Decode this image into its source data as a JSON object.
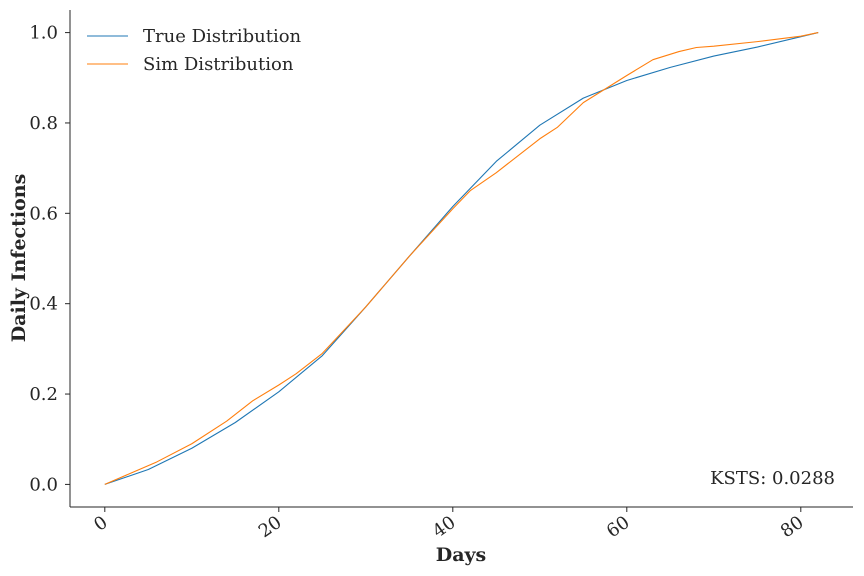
{
  "chart_data": {
    "type": "line",
    "title": "",
    "xlabel": "Days",
    "ylabel": "Daily Infections",
    "xlim": [
      -4,
      86
    ],
    "ylim": [
      -0.05,
      1.05
    ],
    "xticks": [
      0,
      20,
      40,
      60,
      80
    ],
    "xtick_labels": [
      "0",
      "20",
      "40",
      "60",
      "80"
    ],
    "yticks": [
      0.0,
      0.2,
      0.4,
      0.6,
      0.8,
      1.0
    ],
    "ytick_labels": [
      "0.0",
      "0.2",
      "0.4",
      "0.6",
      "0.8",
      "1.0"
    ],
    "grid": false,
    "legend_position": "top-left",
    "annotation": "KSTS: 0.0288",
    "series": [
      {
        "name": "True Distribution",
        "color": "#1f77b4",
        "x": [
          0,
          5,
          10,
          15,
          20,
          25,
          30,
          35,
          40,
          45,
          50,
          55,
          60,
          65,
          70,
          75,
          82
        ],
        "y": [
          0.0,
          0.033,
          0.08,
          0.137,
          0.205,
          0.285,
          0.393,
          0.505,
          0.615,
          0.715,
          0.795,
          0.855,
          0.894,
          0.923,
          0.948,
          0.968,
          1.0
        ]
      },
      {
        "name": "Sim Distribution",
        "color": "#ff7f0e",
        "x": [
          0,
          3,
          6,
          10,
          14,
          17,
          20,
          22,
          25,
          30,
          35,
          40,
          42,
          45,
          50,
          52,
          55,
          60,
          63,
          66,
          68,
          70,
          75,
          80,
          82
        ],
        "y": [
          0.0,
          0.025,
          0.05,
          0.09,
          0.14,
          0.185,
          0.22,
          0.245,
          0.29,
          0.393,
          0.505,
          0.61,
          0.65,
          0.69,
          0.765,
          0.79,
          0.845,
          0.905,
          0.94,
          0.958,
          0.967,
          0.97,
          0.98,
          0.992,
          1.0
        ]
      }
    ]
  }
}
